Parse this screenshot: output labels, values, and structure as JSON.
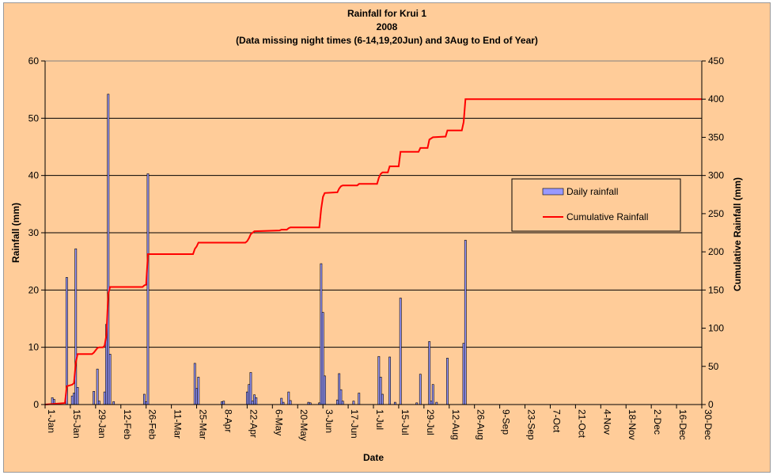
{
  "chart_data": {
    "type": "bar",
    "title": [
      "Rainfall for Krui 1",
      "2008",
      "(Data missing night times (6-14,19,20Jun) and 3Aug to End of Year)"
    ],
    "xlabel": "Date",
    "ylabel": "Rainfall (mm)",
    "y2label": "Cumulative Rainfall (mm)",
    "ylim": [
      0,
      60
    ],
    "y2lim": [
      0,
      450
    ],
    "yticks": [
      "0",
      "10",
      "20",
      "30",
      "40",
      "50",
      "60"
    ],
    "y2ticks": [
      "0",
      "50",
      "100",
      "150",
      "200",
      "250",
      "300",
      "350",
      "400",
      "450"
    ],
    "xlim": [
      1,
      365
    ],
    "grid": "horizontal",
    "legend_position": "right",
    "x_tick_labels": [
      {
        "day": 1,
        "label": "1-Jan"
      },
      {
        "day": 15,
        "label": "15-Jan"
      },
      {
        "day": 29,
        "label": "29-Jan"
      },
      {
        "day": 43,
        "label": "12-Feb"
      },
      {
        "day": 57,
        "label": "26-Feb"
      },
      {
        "day": 71,
        "label": "11-Mar"
      },
      {
        "day": 85,
        "label": "25-Mar"
      },
      {
        "day": 99,
        "label": "8-Apr"
      },
      {
        "day": 113,
        "label": "22-Apr"
      },
      {
        "day": 127,
        "label": "6-May"
      },
      {
        "day": 141,
        "label": "20-May"
      },
      {
        "day": 155,
        "label": "3-Jun"
      },
      {
        "day": 169,
        "label": "17-Jun"
      },
      {
        "day": 183,
        "label": "1-Jul"
      },
      {
        "day": 197,
        "label": "15-Jul"
      },
      {
        "day": 211,
        "label": "29-Jul"
      },
      {
        "day": 225,
        "label": "12-Aug"
      },
      {
        "day": 239,
        "label": "26-Aug"
      },
      {
        "day": 253,
        "label": "9-Sep"
      },
      {
        "day": 267,
        "label": "23-Sep"
      },
      {
        "day": 281,
        "label": "7-Oct"
      },
      {
        "day": 295,
        "label": "21-Oct"
      },
      {
        "day": 309,
        "label": "4-Nov"
      },
      {
        "day": 323,
        "label": "18-Nov"
      },
      {
        "day": 337,
        "label": "2-Dec"
      },
      {
        "day": 351,
        "label": "16-Dec"
      },
      {
        "day": 365,
        "label": "30-Dec"
      }
    ],
    "series": [
      {
        "name": "Daily rainfall",
        "color": "#9999ff",
        "points": [
          [
            5,
            1.2
          ],
          [
            6,
            0.9
          ],
          [
            13,
            22.2
          ],
          [
            16,
            1.5
          ],
          [
            17,
            2.0
          ],
          [
            18,
            27.2
          ],
          [
            19,
            3.0
          ],
          [
            28,
            2.3
          ],
          [
            30,
            6.2
          ],
          [
            31,
            0.6
          ],
          [
            34,
            2.2
          ],
          [
            35,
            14.0
          ],
          [
            36,
            54.2
          ],
          [
            37,
            8.8
          ],
          [
            39,
            0.5
          ],
          [
            56,
            1.8
          ],
          [
            57,
            0.5
          ],
          [
            58,
            40.3
          ],
          [
            84,
            7.2
          ],
          [
            85,
            2.8
          ],
          [
            86,
            4.8
          ],
          [
            99,
            0.5
          ],
          [
            100,
            0.6
          ],
          [
            113,
            2.2
          ],
          [
            114,
            3.5
          ],
          [
            115,
            5.6
          ],
          [
            116,
            0.6
          ],
          [
            117,
            1.7
          ],
          [
            118,
            1.2
          ],
          [
            132,
            1.1
          ],
          [
            133,
            0.4
          ],
          [
            136,
            2.2
          ],
          [
            137,
            0.7
          ],
          [
            147,
            0.4
          ],
          [
            148,
            0.3
          ],
          [
            153,
            0.3
          ],
          [
            154,
            24.6
          ],
          [
            155,
            16.1
          ],
          [
            156,
            5.0
          ],
          [
            163,
            0.8
          ],
          [
            164,
            5.4
          ],
          [
            165,
            2.6
          ],
          [
            166,
            0.6
          ],
          [
            172,
            0.6
          ],
          [
            175,
            2.0
          ],
          [
            186,
            8.4
          ],
          [
            187,
            4.8
          ],
          [
            188,
            1.8
          ],
          [
            192,
            8.3
          ],
          [
            195,
            0.4
          ],
          [
            198,
            18.6
          ],
          [
            207,
            0.3
          ],
          [
            209,
            5.3
          ],
          [
            214,
            11.0
          ],
          [
            215,
            0.6
          ],
          [
            216,
            3.5
          ],
          [
            218,
            0.4
          ],
          [
            224,
            8.1
          ],
          [
            233,
            10.7
          ],
          [
            234,
            28.7
          ]
        ]
      },
      {
        "name": "Cumulative Rainfall",
        "color": "#ff0000",
        "points": [
          [
            1,
            0
          ],
          [
            12,
            2
          ],
          [
            13,
            24
          ],
          [
            16,
            26
          ],
          [
            17,
            28
          ],
          [
            18,
            55
          ],
          [
            19,
            66
          ],
          [
            27,
            66
          ],
          [
            28,
            68
          ],
          [
            30,
            74
          ],
          [
            31,
            75
          ],
          [
            33,
            75
          ],
          [
            34,
            77
          ],
          [
            35,
            91
          ],
          [
            36,
            145
          ],
          [
            37,
            154
          ],
          [
            55,
            154
          ],
          [
            56,
            156
          ],
          [
            57,
            157
          ],
          [
            58,
            197
          ],
          [
            83,
            197
          ],
          [
            84,
            204
          ],
          [
            85,
            207
          ],
          [
            86,
            212
          ],
          [
            112,
            212
          ],
          [
            113,
            214
          ],
          [
            114,
            218
          ],
          [
            115,
            223
          ],
          [
            117,
            227
          ],
          [
            131,
            228
          ],
          [
            132,
            229
          ],
          [
            135,
            229
          ],
          [
            136,
            231
          ],
          [
            137,
            232
          ],
          [
            153,
            232
          ],
          [
            154,
            256
          ],
          [
            155,
            272
          ],
          [
            156,
            277
          ],
          [
            163,
            278
          ],
          [
            164,
            283
          ],
          [
            165,
            286
          ],
          [
            166,
            287
          ],
          [
            174,
            287
          ],
          [
            175,
            289
          ],
          [
            185,
            289
          ],
          [
            186,
            297
          ],
          [
            187,
            302
          ],
          [
            188,
            304
          ],
          [
            191,
            304
          ],
          [
            192,
            312
          ],
          [
            197,
            312
          ],
          [
            198,
            331
          ],
          [
            208,
            331
          ],
          [
            209,
            336
          ],
          [
            213,
            336
          ],
          [
            214,
            347
          ],
          [
            216,
            350
          ],
          [
            223,
            351
          ],
          [
            224,
            359
          ],
          [
            232,
            359
          ],
          [
            233,
            370
          ],
          [
            234,
            400
          ],
          [
            365,
            400
          ]
        ]
      }
    ]
  }
}
